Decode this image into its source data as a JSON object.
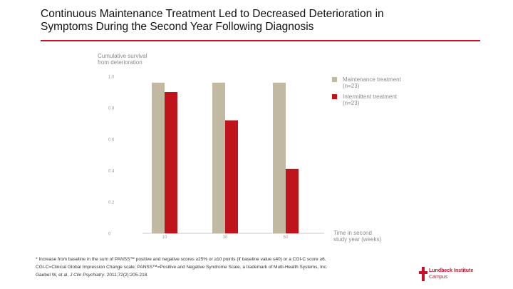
{
  "title_line1": "Continuous Maintenance Treatment Led to Decreased Deterioration in",
  "title_line2": "Symptoms During the Second Year Following Diagnosis",
  "colors": {
    "accent": "#c8102e",
    "maintenance": "#c2b9a2",
    "intermittent": "#c0141c"
  },
  "chart_data": {
    "type": "bar",
    "ylabel": [
      "Cumulative survival",
      "from deterioration"
    ],
    "xlabel": [
      "Time in second",
      "study year (weeks)"
    ],
    "categories": [
      "10",
      "30",
      "50"
    ],
    "ylim": [
      0,
      1.0
    ],
    "yticks": [
      "0",
      "0.2",
      "0.4",
      "0.6",
      "0.8",
      "1.0"
    ],
    "series": [
      {
        "name": "Maintenance treatment",
        "n": "(n=23)",
        "values": [
          0.96,
          0.96,
          0.96
        ]
      },
      {
        "name": "Intermittent treatment",
        "n": "(n=23)",
        "values": [
          0.9,
          0.72,
          0.41
        ]
      }
    ],
    "grid": false,
    "legend": "top-right"
  },
  "footnotes": {
    "line1": "* Increase from baseline in the sum of PANSS™ positive and negative scores ≥25% or ≥10 points (if baseline value ≤40) or a CGI-C score ≥6.",
    "line2": "CGI-C=Clinical Global Impression Change scale; PANSS™=Positive and Negative Syndrome Scale, a trademark of Multi-Health Systems, Inc.",
    "line3_pre": "Gaebel W, et al. ",
    "line3_journal": "J Clin Psychiatry",
    "line3_post": ". 2011;72(2):205-218."
  },
  "logo": {
    "line1": "Lundbeck Institute",
    "line2": "Campus"
  }
}
